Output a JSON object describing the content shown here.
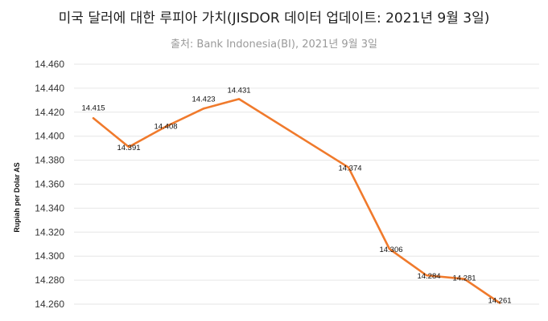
{
  "chart_data": {
    "type": "line",
    "title": "미국 달러에 대한 루피아 가치(JISDOR 데이터 업데이트: 2021년 9월 3일)",
    "subtitle": "출처: Bank Indonesia(BI), 2021년 9월 3일",
    "ylabel": "Rupiah per Dolar AS",
    "xlabel": "",
    "ylim": [
      14260,
      14460
    ],
    "yticks": [
      "14.460",
      "14.440",
      "14.420",
      "14.400",
      "14.380",
      "14.360",
      "14.340",
      "14.320",
      "14.300",
      "14.280",
      "14.260"
    ],
    "grid": true,
    "line_color": "#f07a2c",
    "values": [
      14415,
      14391,
      14408,
      14423,
      14431,
      14374,
      14306,
      14284,
      14281,
      14261
    ],
    "labels": [
      "14.415",
      "14.391",
      "14.408",
      "14.423",
      "14.431",
      "14.374",
      "14.306",
      "14.284",
      "14.281",
      "14.261"
    ]
  }
}
